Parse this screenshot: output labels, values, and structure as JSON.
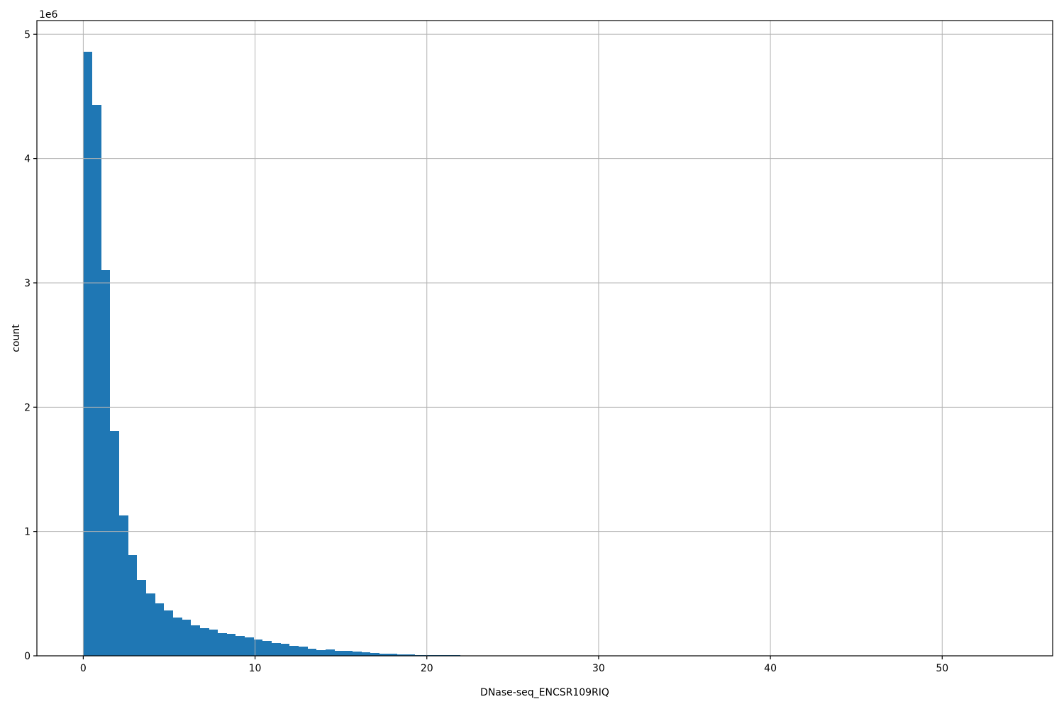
{
  "chart_data": {
    "type": "bar",
    "subtype": "histogram",
    "title": "",
    "xlabel": "DNase-seq_ENCSR109RIQ",
    "ylabel": "count",
    "y_offset_label": "1e6",
    "first_bin_edge": 0,
    "bin_width": 0.5224,
    "counts": [
      4860000,
      4430000,
      3100000,
      1810000,
      1130000,
      810000,
      610000,
      500000,
      420000,
      365000,
      310000,
      290000,
      245000,
      222000,
      211000,
      184000,
      177000,
      161000,
      148000,
      133000,
      118000,
      104000,
      95000,
      82000,
      72000,
      57000,
      47000,
      53000,
      42000,
      38000,
      32000,
      27000,
      23000,
      19000,
      15000,
      12000,
      10000,
      8000,
      7000,
      6000,
      5000,
      4000
    ],
    "xlim": [
      -2.7,
      56.43
    ],
    "ylim": [
      0,
      5110000
    ],
    "x_ticks": [
      0,
      10,
      20,
      30,
      40,
      50
    ],
    "x_tick_labels": [
      "0",
      "10",
      "20",
      "30",
      "40",
      "50"
    ],
    "y_ticks": [
      0,
      1000000,
      2000000,
      3000000,
      4000000,
      5000000
    ],
    "y_tick_labels": [
      "0",
      "1",
      "2",
      "3",
      "4",
      "5"
    ],
    "grid": true,
    "grid_color": "#b3b3b3",
    "bar_color": "#1f77b4",
    "spine_color": "#000000",
    "background_color": "#ffffff",
    "legend": null
  }
}
